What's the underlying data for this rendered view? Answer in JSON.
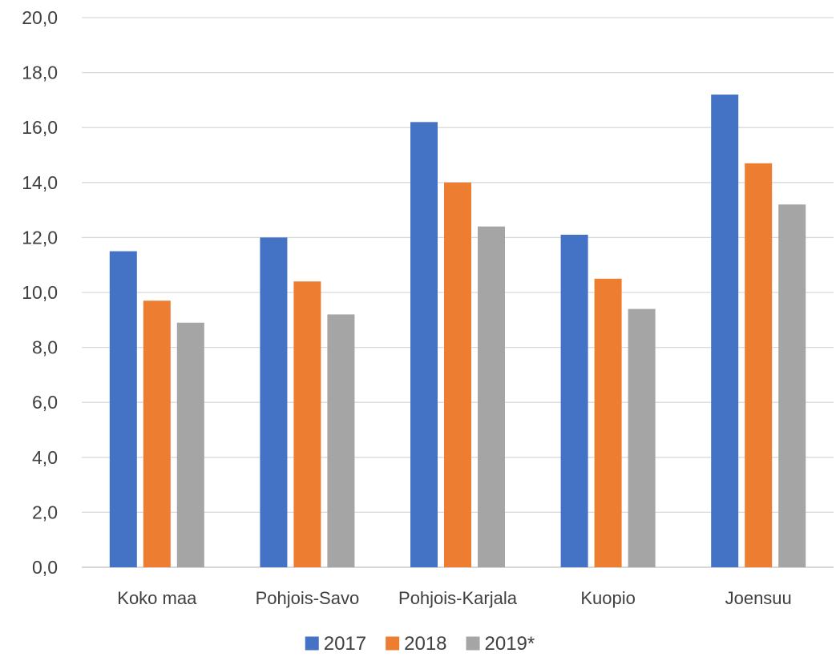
{
  "chart_data": {
    "type": "bar",
    "title": "",
    "xlabel": "",
    "ylabel": "",
    "categories": [
      "Koko maa",
      "Pohjois-Savo",
      "Pohjois-Karjala",
      "Kuopio",
      "Joensuu"
    ],
    "series": [
      {
        "name": "2017",
        "color": "#4472C4",
        "values": [
          11.5,
          12.0,
          16.2,
          12.1,
          17.2
        ]
      },
      {
        "name": "2018",
        "color": "#ED7D31",
        "values": [
          9.7,
          10.4,
          14.0,
          10.5,
          14.7
        ]
      },
      {
        "name": "2019*",
        "color": "#A5A5A5",
        "values": [
          8.9,
          9.2,
          12.4,
          9.4,
          13.2
        ]
      }
    ],
    "ylim": [
      0,
      20
    ],
    "yticks": [
      "0,0",
      "2,0",
      "4,0",
      "6,0",
      "8,0",
      "10,0",
      "12,0",
      "14,0",
      "16,0",
      "18,0",
      "20,0"
    ],
    "grid": true,
    "legend_position": "bottom"
  }
}
